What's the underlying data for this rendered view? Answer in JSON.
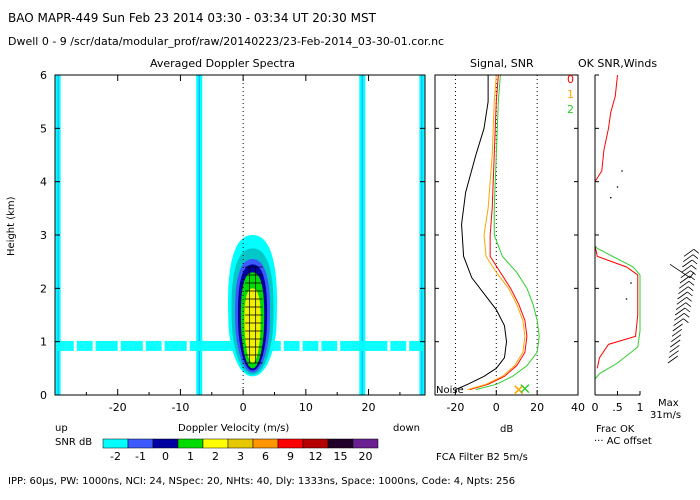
{
  "header": {
    "line1": "BAO  MAPR-449  Sun Feb 23 2014 03:30 - 03:34 UT 20:30 MST",
    "line2": "Dwell  0 - 9   /scr/data/modular_prof/raw/20140223/23-Feb-2014_03-30-01.cor.nc"
  },
  "footer": {
    "params": "IPP: 60μs,  PW: 1000ns,  NCI: 24,  NSpec: 20, NHts: 40,  Dly: 1333ns,  Space: 1000ns,  Code: 4,  Npts: 256",
    "fca": "FCA Filter B2  5m/s"
  },
  "colors": {
    "cyan": "#00ffff",
    "teal": "#00c8c8",
    "blue": "#3c5aff",
    "navy": "#0000a0",
    "green": "#00dc00",
    "yellow": "#f0f000",
    "orange": "#ff9600",
    "red": "#ff0000",
    "black": "#000000",
    "sig_orange": "#ffa500",
    "sig_green": "#32cd32",
    "purple": "#7030a0"
  },
  "colorbar": {
    "label": "SNR dB",
    "up_label": "up",
    "down_label": "down",
    "ticks": [
      "-2",
      "-1",
      "0",
      "1",
      "2",
      "3",
      "6",
      "9",
      "12",
      "15",
      "20"
    ],
    "colors": [
      "#00ffff",
      "#3c5aff",
      "#0000a0",
      "#00dc00",
      "#ffff00",
      "#e6c800",
      "#ff9600",
      "#ff0000",
      "#b40000",
      "#200028",
      "#6a2090"
    ]
  },
  "chart_data": [
    {
      "type": "heatmap",
      "title": "Averaged Doppler Spectra",
      "xlabel": "Doppler Velocity (m/s)",
      "ylabel": "Height (km)",
      "xlim": [
        -30,
        29
      ],
      "ylim": [
        0,
        6
      ],
      "xticks": [
        -20,
        -10,
        0,
        10,
        20
      ],
      "xtick_labels": [
        "-20",
        "-10",
        "0",
        "10",
        "20"
      ],
      "yticks": [
        0,
        1,
        2,
        3,
        4,
        5,
        6
      ],
      "ytick_labels": [
        "0",
        "1",
        "2",
        "3",
        "4",
        "5",
        "6"
      ],
      "clutter_bands_ms": [
        -29.5,
        -7,
        19,
        28.5
      ],
      "echo_core": {
        "velocity_ms": 1.5,
        "height_range_km": [
          0.4,
          2.6
        ],
        "max_height_km": 3.0
      }
    },
    {
      "type": "line",
      "title": "Signal, SNR",
      "xlabel": "dB",
      "xlim": [
        -30,
        40
      ],
      "ylim": [
        0,
        6
      ],
      "xticks": [
        -20,
        0,
        20,
        40
      ],
      "xtick_labels": [
        "-20",
        "0",
        "20",
        "40"
      ],
      "annotation": "Noise",
      "series": [
        {
          "name": "signal",
          "color": "black",
          "x": [
            -4,
            -4,
            -6,
            -10,
            -15,
            -17,
            -16,
            -12,
            -6,
            0,
            4,
            5,
            4,
            0,
            -6,
            -14,
            -20
          ],
          "y": [
            6,
            5.5,
            5,
            4.5,
            3.8,
            3.2,
            2.6,
            2.2,
            1.9,
            1.6,
            1.3,
            1.0,
            0.7,
            0.5,
            0.35,
            0.2,
            0.1
          ]
        },
        {
          "name": "snr-0",
          "color": "red",
          "x": [
            1,
            0,
            -1,
            -2,
            -3,
            -3,
            2,
            7,
            11,
            14,
            15,
            14,
            10,
            4,
            -4,
            -13
          ],
          "y": [
            6,
            5.5,
            4.5,
            3.5,
            3.0,
            2.6,
            2.3,
            2.0,
            1.7,
            1.4,
            1.1,
            0.8,
            0.55,
            0.35,
            0.2,
            0.1
          ]
        },
        {
          "name": "snr-1",
          "color": "orange",
          "x": [
            0,
            -1,
            -2,
            -4,
            -6,
            -5,
            0,
            6,
            10,
            13,
            14,
            13,
            9,
            3,
            -5,
            -14
          ],
          "y": [
            6,
            5.5,
            4.5,
            3.5,
            3.0,
            2.6,
            2.3,
            2.0,
            1.7,
            1.4,
            1.1,
            0.8,
            0.55,
            0.35,
            0.2,
            0.1
          ]
        },
        {
          "name": "snr-2",
          "color": "green",
          "x": [
            2,
            1,
            0,
            -1,
            -1,
            3,
            10,
            15,
            18,
            20,
            21,
            20,
            15,
            8,
            0,
            -10
          ],
          "y": [
            6,
            5.5,
            4.5,
            3.5,
            3.0,
            2.6,
            2.3,
            2.0,
            1.7,
            1.4,
            1.1,
            0.8,
            0.55,
            0.35,
            0.2,
            0.1
          ]
        }
      ],
      "markers": [
        {
          "name": "noise-x-orange",
          "x": 11,
          "y": 0.1,
          "color": "orange"
        },
        {
          "name": "noise-x-green",
          "x": 14,
          "y": 0.12,
          "color": "green"
        }
      ]
    },
    {
      "type": "line",
      "title": "OK SNR,Winds",
      "xlabel": "Frac OK",
      "xlim": [
        0,
        1
      ],
      "ylim": [
        0,
        6
      ],
      "xticks": [
        0,
        0.5,
        1
      ],
      "xtick_labels": [
        "0",
        ".5",
        "1"
      ],
      "legend": [
        "0",
        "1",
        "2"
      ],
      "footnote_max": "Max",
      "footnote_speed": "31m/s",
      "footnote_offset": "··· AC offset",
      "series": [
        {
          "name": "frac-ok-0",
          "color": "red",
          "x": [
            0.5,
            0.45,
            0.35,
            0.3,
            0.2,
            0.15,
            0.0,
            0.0,
            0.05,
            0.7,
            0.95,
            0.95,
            0.9,
            0.3,
            0.1,
            0.05
          ],
          "y": [
            6,
            5.6,
            5.3,
            5.0,
            4.6,
            4.2,
            4.0,
            2.8,
            2.6,
            2.4,
            2.25,
            1.5,
            1.1,
            0.95,
            0.7,
            0.5
          ]
        },
        {
          "name": "frac-ok-2",
          "color": "green",
          "x": [
            0,
            0,
            0,
            0.05,
            0.85,
            1.0,
            1.0,
            0.95,
            0.5,
            0.1,
            0
          ],
          "y": [
            6,
            4.0,
            2.8,
            2.75,
            2.4,
            2.25,
            1.2,
            0.9,
            0.6,
            0.4,
            0.3
          ]
        }
      ],
      "wind_barbs": {
        "height_range_km": [
          0.6,
          2.6
        ]
      }
    }
  ]
}
